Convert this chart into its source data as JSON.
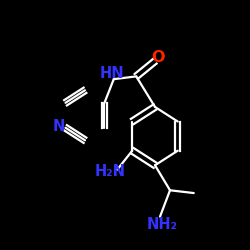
{
  "background_color": "#000000",
  "bond_color": "#ffffff",
  "atom_N_color": "#3333ff",
  "atom_O_color": "#ff2200",
  "bond_width": 1.6,
  "font_size": 10.5,
  "fig_width": 2.5,
  "fig_height": 2.5,
  "dpi": 100,
  "xlim": [
    0.0,
    1.0
  ],
  "ylim": [
    0.15,
    1.05
  ]
}
